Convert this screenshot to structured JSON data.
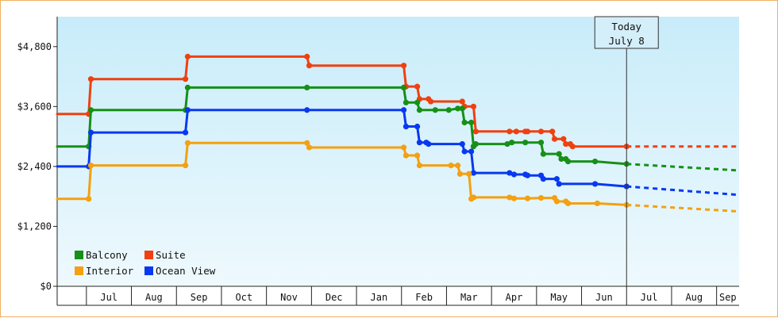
{
  "chart_data": {
    "type": "line",
    "step": true,
    "ylabel": "",
    "xlabel": "",
    "ylim": [
      0,
      5400
    ],
    "y_ticks": [
      {
        "value": 0,
        "label": "$0"
      },
      {
        "value": 1200,
        "label": "$1,200"
      },
      {
        "value": 2400,
        "label": "$2,400"
      },
      {
        "value": 3600,
        "label": "$3,600"
      },
      {
        "value": 4800,
        "label": "$4,800"
      }
    ],
    "x_months": [
      "",
      "Jul",
      "Aug",
      "Sep",
      "Oct",
      "Nov",
      "Dec",
      "Jan",
      "Feb",
      "Mar",
      "Apr",
      "May",
      "Jun",
      "Jul",
      "Aug",
      "Sep"
    ],
    "xlim": [
      0.35,
      15.5
    ],
    "grid": false,
    "today": {
      "line1": "Today",
      "line2": "July 8",
      "x": 13.0
    },
    "legend": {
      "placement": "bottom-left"
    },
    "series": [
      {
        "name": "Suite",
        "color": "#f04010",
        "points": [
          [
            0.35,
            3450
          ],
          [
            1.05,
            3450
          ],
          [
            1.1,
            4150
          ],
          [
            3.2,
            4150
          ],
          [
            3.25,
            4600
          ],
          [
            5.9,
            4600
          ],
          [
            5.95,
            4420
          ],
          [
            8.05,
            4420
          ],
          [
            8.1,
            4000
          ],
          [
            8.35,
            4000
          ],
          [
            8.4,
            3750
          ],
          [
            8.6,
            3750
          ],
          [
            8.65,
            3700
          ],
          [
            9.35,
            3700
          ],
          [
            9.4,
            3600
          ],
          [
            9.6,
            3600
          ],
          [
            9.65,
            3100
          ],
          [
            10.4,
            3100
          ],
          [
            10.55,
            3100
          ],
          [
            10.75,
            3100
          ],
          [
            10.8,
            3100
          ],
          [
            11.1,
            3100
          ],
          [
            11.35,
            3100
          ],
          [
            11.4,
            2950
          ],
          [
            11.6,
            2950
          ],
          [
            11.65,
            2850
          ],
          [
            11.75,
            2850
          ],
          [
            11.8,
            2800
          ],
          [
            13.0,
            2800
          ]
        ],
        "forecast": [
          [
            13.0,
            2800
          ],
          [
            15.5,
            2800
          ]
        ]
      },
      {
        "name": "Balcony",
        "color": "#169016",
        "points": [
          [
            0.35,
            2800
          ],
          [
            1.05,
            2800
          ],
          [
            1.1,
            3530
          ],
          [
            3.2,
            3530
          ],
          [
            3.25,
            3980
          ],
          [
            5.9,
            3980
          ],
          [
            8.05,
            3980
          ],
          [
            8.1,
            3680
          ],
          [
            8.35,
            3680
          ],
          [
            8.4,
            3530
          ],
          [
            8.75,
            3530
          ],
          [
            9.05,
            3530
          ],
          [
            9.25,
            3560
          ],
          [
            9.35,
            3560
          ],
          [
            9.4,
            3280
          ],
          [
            9.55,
            3280
          ],
          [
            9.6,
            2800
          ],
          [
            9.65,
            2850
          ],
          [
            10.35,
            2850
          ],
          [
            10.45,
            2880
          ],
          [
            10.75,
            2880
          ],
          [
            11.1,
            2880
          ],
          [
            11.15,
            2650
          ],
          [
            11.5,
            2650
          ],
          [
            11.55,
            2550
          ],
          [
            11.65,
            2550
          ],
          [
            11.7,
            2500
          ],
          [
            12.3,
            2500
          ],
          [
            13.0,
            2450
          ]
        ],
        "forecast": [
          [
            13.0,
            2450
          ],
          [
            15.5,
            2320
          ]
        ]
      },
      {
        "name": "Ocean View",
        "color": "#0838f0",
        "points": [
          [
            0.35,
            2400
          ],
          [
            1.05,
            2400
          ],
          [
            1.1,
            3080
          ],
          [
            3.2,
            3080
          ],
          [
            3.25,
            3530
          ],
          [
            5.9,
            3530
          ],
          [
            8.05,
            3530
          ],
          [
            8.1,
            3200
          ],
          [
            8.35,
            3200
          ],
          [
            8.4,
            2880
          ],
          [
            8.55,
            2880
          ],
          [
            8.6,
            2850
          ],
          [
            9.35,
            2850
          ],
          [
            9.4,
            2700
          ],
          [
            9.55,
            2700
          ],
          [
            9.6,
            2270
          ],
          [
            10.4,
            2270
          ],
          [
            10.5,
            2240
          ],
          [
            10.75,
            2240
          ],
          [
            10.8,
            2220
          ],
          [
            11.1,
            2220
          ],
          [
            11.15,
            2150
          ],
          [
            11.45,
            2150
          ],
          [
            11.5,
            2050
          ],
          [
            12.3,
            2050
          ],
          [
            13.0,
            2000
          ]
        ],
        "forecast": [
          [
            13.0,
            2000
          ],
          [
            15.5,
            1830
          ]
        ]
      },
      {
        "name": "Interior",
        "color": "#f4a010",
        "points": [
          [
            0.35,
            1750
          ],
          [
            1.05,
            1750
          ],
          [
            1.1,
            2420
          ],
          [
            3.2,
            2420
          ],
          [
            3.25,
            2870
          ],
          [
            5.9,
            2870
          ],
          [
            5.95,
            2780
          ],
          [
            8.05,
            2780
          ],
          [
            8.1,
            2620
          ],
          [
            8.35,
            2620
          ],
          [
            8.4,
            2420
          ],
          [
            9.1,
            2420
          ],
          [
            9.25,
            2420
          ],
          [
            9.3,
            2250
          ],
          [
            9.5,
            2250
          ],
          [
            9.55,
            1750
          ],
          [
            9.6,
            1780
          ],
          [
            10.4,
            1780
          ],
          [
            10.5,
            1760
          ],
          [
            10.8,
            1760
          ],
          [
            11.1,
            1770
          ],
          [
            11.4,
            1770
          ],
          [
            11.45,
            1700
          ],
          [
            11.65,
            1700
          ],
          [
            11.7,
            1660
          ],
          [
            12.35,
            1660
          ],
          [
            13.0,
            1630
          ]
        ],
        "forecast": [
          [
            13.0,
            1630
          ],
          [
            15.5,
            1500
          ]
        ]
      }
    ]
  }
}
